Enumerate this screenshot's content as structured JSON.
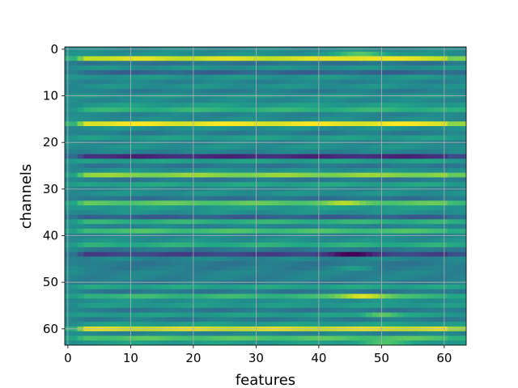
{
  "chart_data": {
    "type": "heatmap",
    "title": "",
    "xlabel": "features",
    "ylabel": "channels",
    "x_range": [
      -0.5,
      63.5
    ],
    "y_range": [
      -0.5,
      63.5
    ],
    "y_inverted": true,
    "x_ticks": [
      0,
      10,
      20,
      30,
      40,
      50,
      60
    ],
    "y_ticks": [
      0,
      10,
      20,
      30,
      40,
      50,
      60
    ],
    "grid": true,
    "colormap": "viridis",
    "value_range": [
      0,
      1
    ],
    "n_rows": 64,
    "n_cols": 64,
    "row_base": [
      0.48,
      0.5,
      0.93,
      0.38,
      0.5,
      0.32,
      0.52,
      0.45,
      0.5,
      0.42,
      0.52,
      0.47,
      0.55,
      0.64,
      0.45,
      0.48,
      0.97,
      0.5,
      0.42,
      0.55,
      0.46,
      0.5,
      0.44,
      0.12,
      0.56,
      0.4,
      0.5,
      0.82,
      0.4,
      0.58,
      0.46,
      0.5,
      0.38,
      0.74,
      0.54,
      0.5,
      0.3,
      0.64,
      0.45,
      0.7,
      0.46,
      0.5,
      0.62,
      0.4,
      0.2,
      0.45,
      0.4,
      0.42,
      0.45,
      0.44,
      0.42,
      0.58,
      0.4,
      0.66,
      0.5,
      0.54,
      0.4,
      0.55,
      0.42,
      0.56,
      0.94,
      0.45,
      0.72,
      0.55
    ],
    "hot_spots": [
      {
        "row": 1,
        "col": 47,
        "delta": 0.25,
        "width": 4
      },
      {
        "row": 2,
        "col": 47,
        "delta": 0.06,
        "width": 5
      },
      {
        "row": 33,
        "col": 44,
        "delta": 0.12,
        "width": 3
      },
      {
        "row": 44,
        "col": 45,
        "delta": -0.18,
        "width": 4
      },
      {
        "row": 47,
        "col": 46,
        "delta": 0.12,
        "width": 3
      },
      {
        "row": 53,
        "col": 47,
        "delta": 0.32,
        "width": 4
      },
      {
        "row": 57,
        "col": 50,
        "delta": 0.22,
        "width": 3
      },
      {
        "row": 63,
        "col": 50,
        "delta": 0.15,
        "width": 4
      }
    ]
  }
}
